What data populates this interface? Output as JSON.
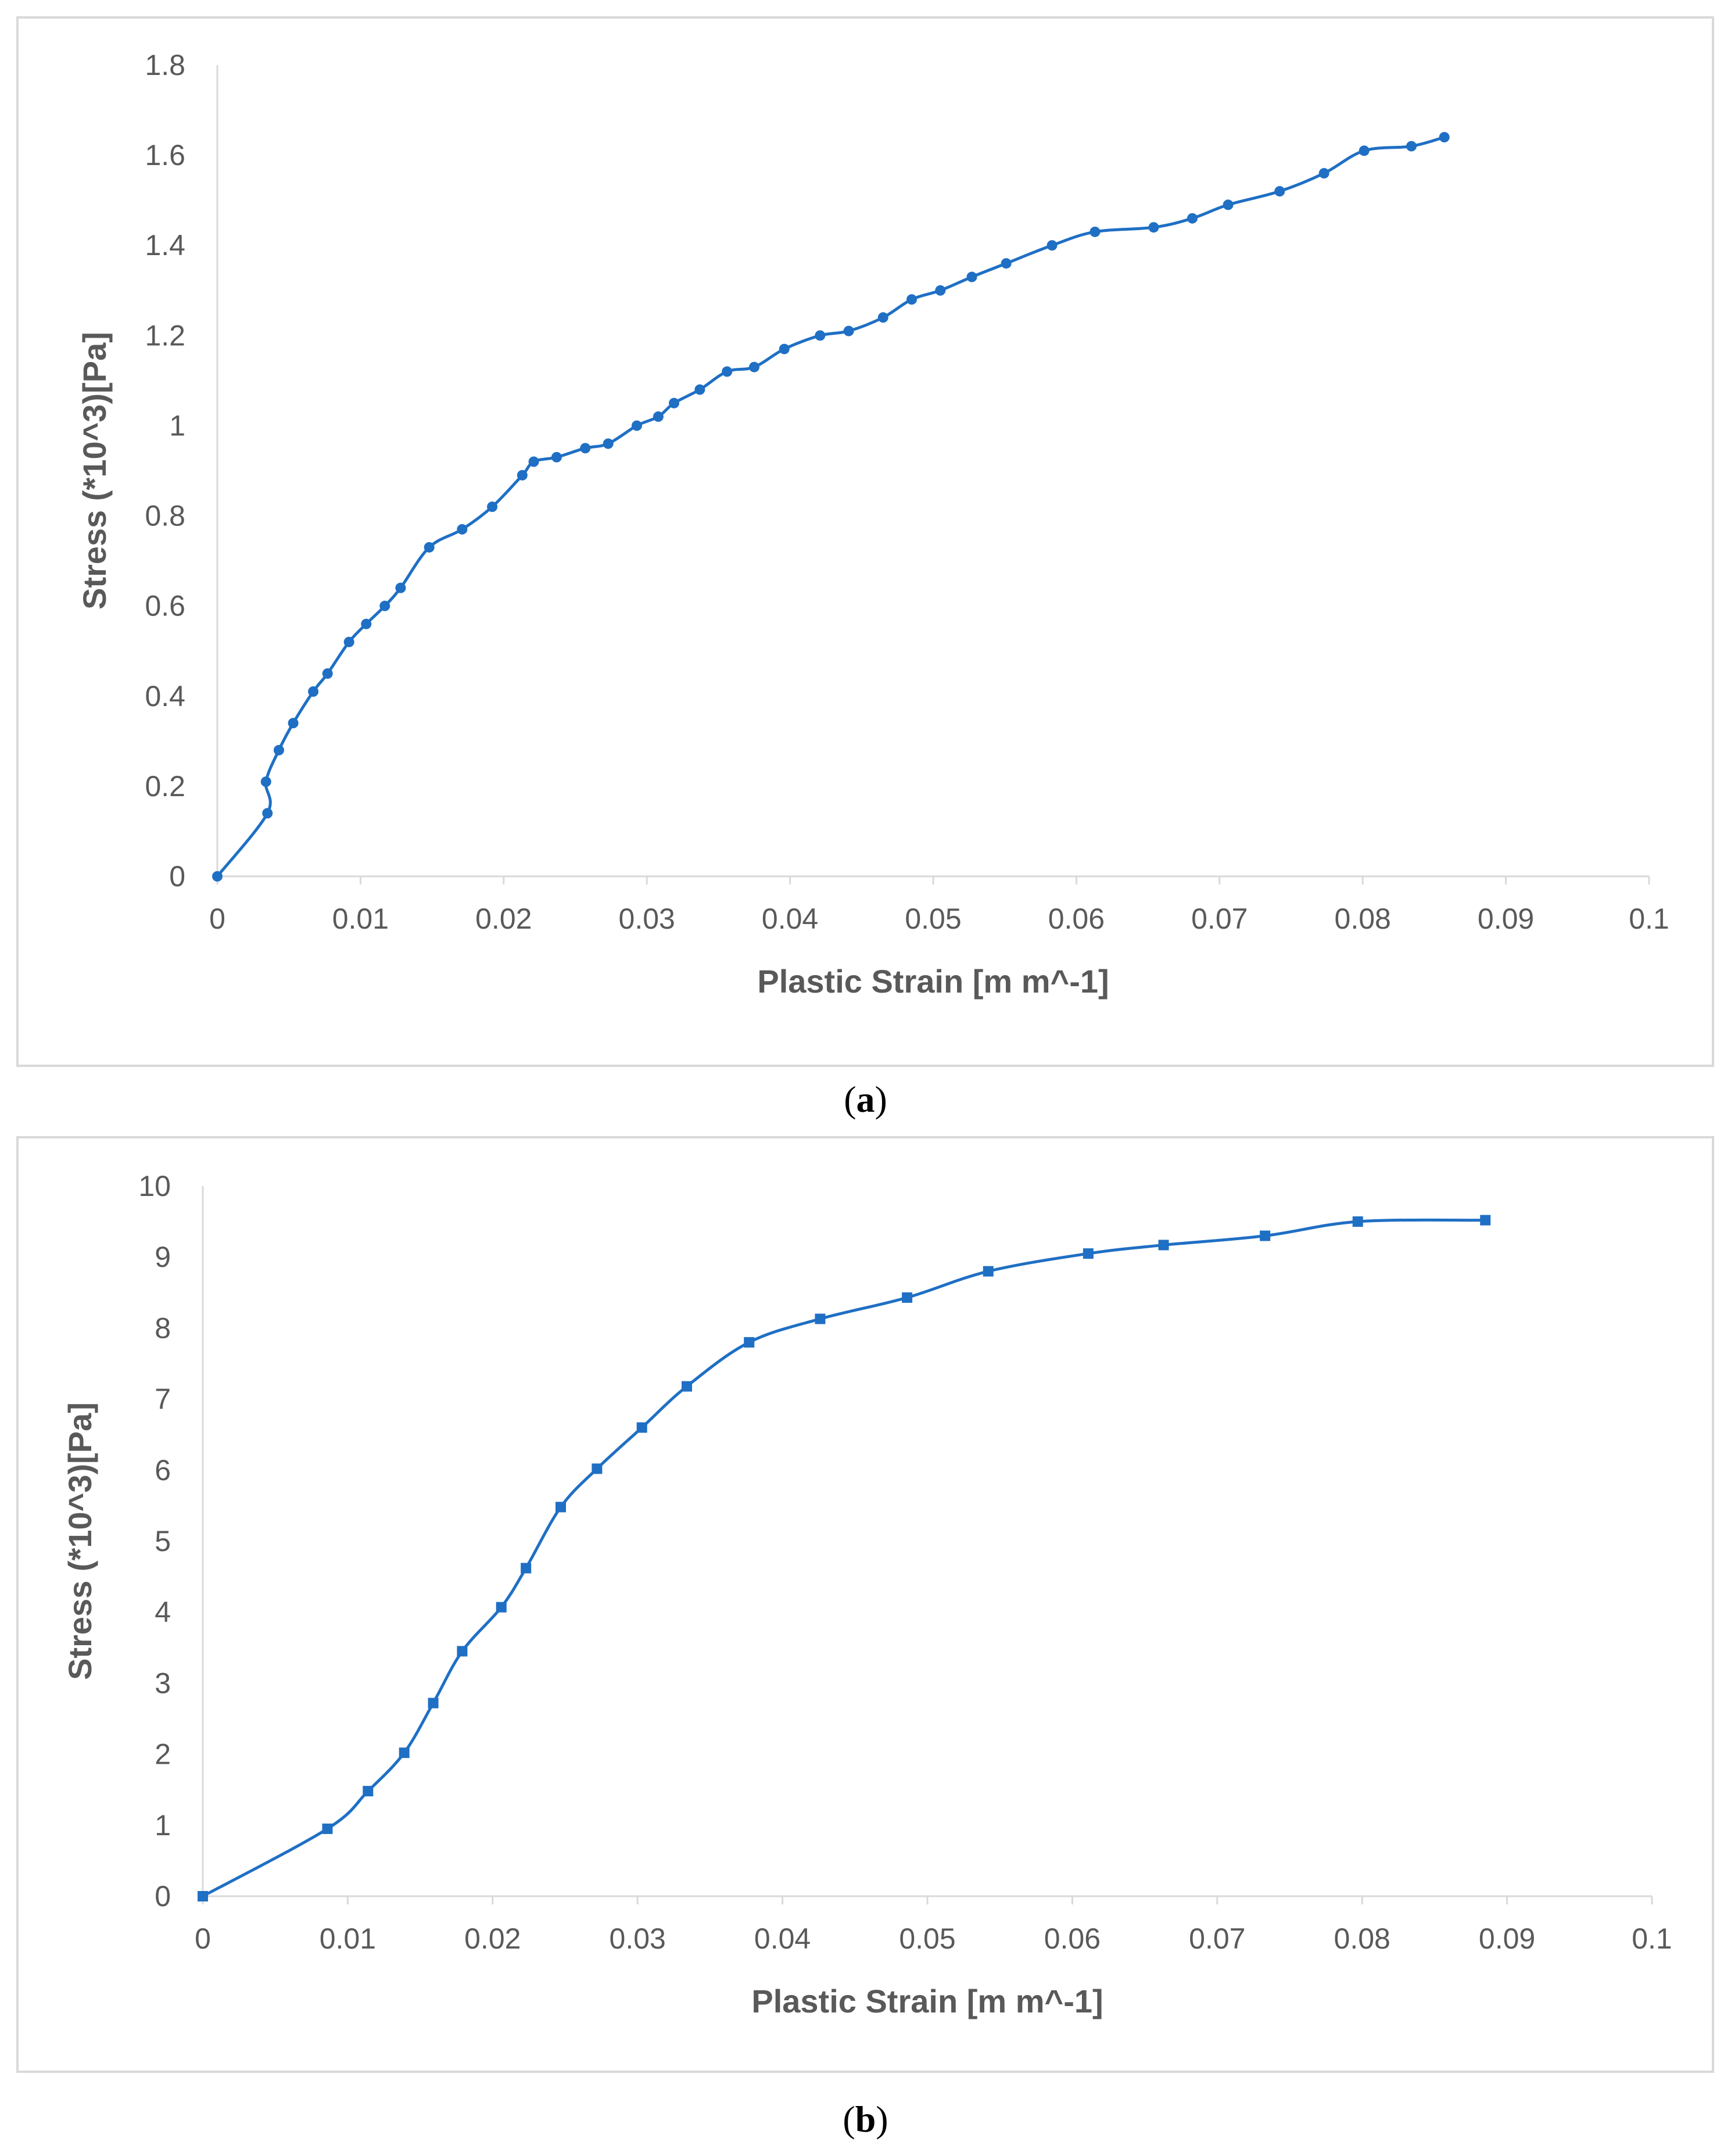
{
  "charts": [
    {
      "label": "a",
      "chart_data": {
        "type": "line",
        "xlabel": "Plastic Strain [m m^-1]",
        "ylabel": "Stress (*10^3)[Pa]",
        "xlim": [
          0,
          0.1
        ],
        "ylim": [
          0,
          1.8
        ],
        "xticks": [
          0,
          0.01,
          0.02,
          0.03,
          0.04,
          0.05,
          0.06,
          0.07,
          0.08,
          0.09,
          0.1
        ],
        "yticks": [
          0,
          0.2,
          0.4,
          0.6,
          0.8,
          1,
          1.2,
          1.4,
          1.6,
          1.8
        ],
        "marker": "circle",
        "color": "#1f6fc4",
        "series": [
          {
            "name": "Stress",
            "x": [
              0,
              0.0035,
              0.0034,
              0.0043,
              0.0053,
              0.0067,
              0.0077,
              0.0092,
              0.0104,
              0.0117,
              0.0128,
              0.0148,
              0.0171,
              0.0192,
              0.0213,
              0.0221,
              0.0237,
              0.0257,
              0.0273,
              0.0293,
              0.0308,
              0.0319,
              0.0337,
              0.0356,
              0.0375,
              0.0396,
              0.0421,
              0.0441,
              0.0465,
              0.0485,
              0.0505,
              0.0527,
              0.0551,
              0.0583,
              0.0613,
              0.0654,
              0.0681,
              0.0706,
              0.0742,
              0.0773,
              0.0801,
              0.0834,
              0.0857
            ],
            "y": [
              0,
              0.14,
              0.21,
              0.28,
              0.34,
              0.41,
              0.45,
              0.52,
              0.56,
              0.6,
              0.64,
              0.73,
              0.77,
              0.82,
              0.89,
              0.92,
              0.93,
              0.95,
              0.96,
              1.0,
              1.02,
              1.05,
              1.08,
              1.12,
              1.13,
              1.17,
              1.2,
              1.21,
              1.24,
              1.28,
              1.3,
              1.33,
              1.36,
              1.4,
              1.43,
              1.44,
              1.46,
              1.49,
              1.52,
              1.56,
              1.61,
              1.62,
              1.64
            ]
          }
        ]
      }
    },
    {
      "label": "b",
      "chart_data": {
        "type": "line",
        "xlabel": "Plastic Strain [m m^-1]",
        "ylabel": "Stress (*10^3)[Pa]",
        "xlim": [
          0,
          0.1
        ],
        "ylim": [
          0,
          10
        ],
        "xticks": [
          0,
          0.01,
          0.02,
          0.03,
          0.04,
          0.05,
          0.06,
          0.07,
          0.08,
          0.09,
          0.1
        ],
        "yticks": [
          0,
          1,
          2,
          3,
          4,
          5,
          6,
          7,
          8,
          9,
          10
        ],
        "marker": "square",
        "color": "#1f6fc4",
        "series": [
          {
            "name": "Stress",
            "x": [
              0,
              0.0086,
              0.0114,
              0.0139,
              0.0159,
              0.0179,
              0.0206,
              0.0223,
              0.0247,
              0.0272,
              0.0303,
              0.0334,
              0.0377,
              0.0426,
              0.0486,
              0.0542,
              0.0611,
              0.0663,
              0.0733,
              0.0797,
              0.0885
            ],
            "y": [
              0,
              0.95,
              1.48,
              2.02,
              2.72,
              3.45,
              4.07,
              4.62,
              5.48,
              6.02,
              6.6,
              7.18,
              7.8,
              8.13,
              8.43,
              8.8,
              9.05,
              9.17,
              9.3,
              9.5,
              9.52
            ]
          }
        ]
      }
    }
  ]
}
